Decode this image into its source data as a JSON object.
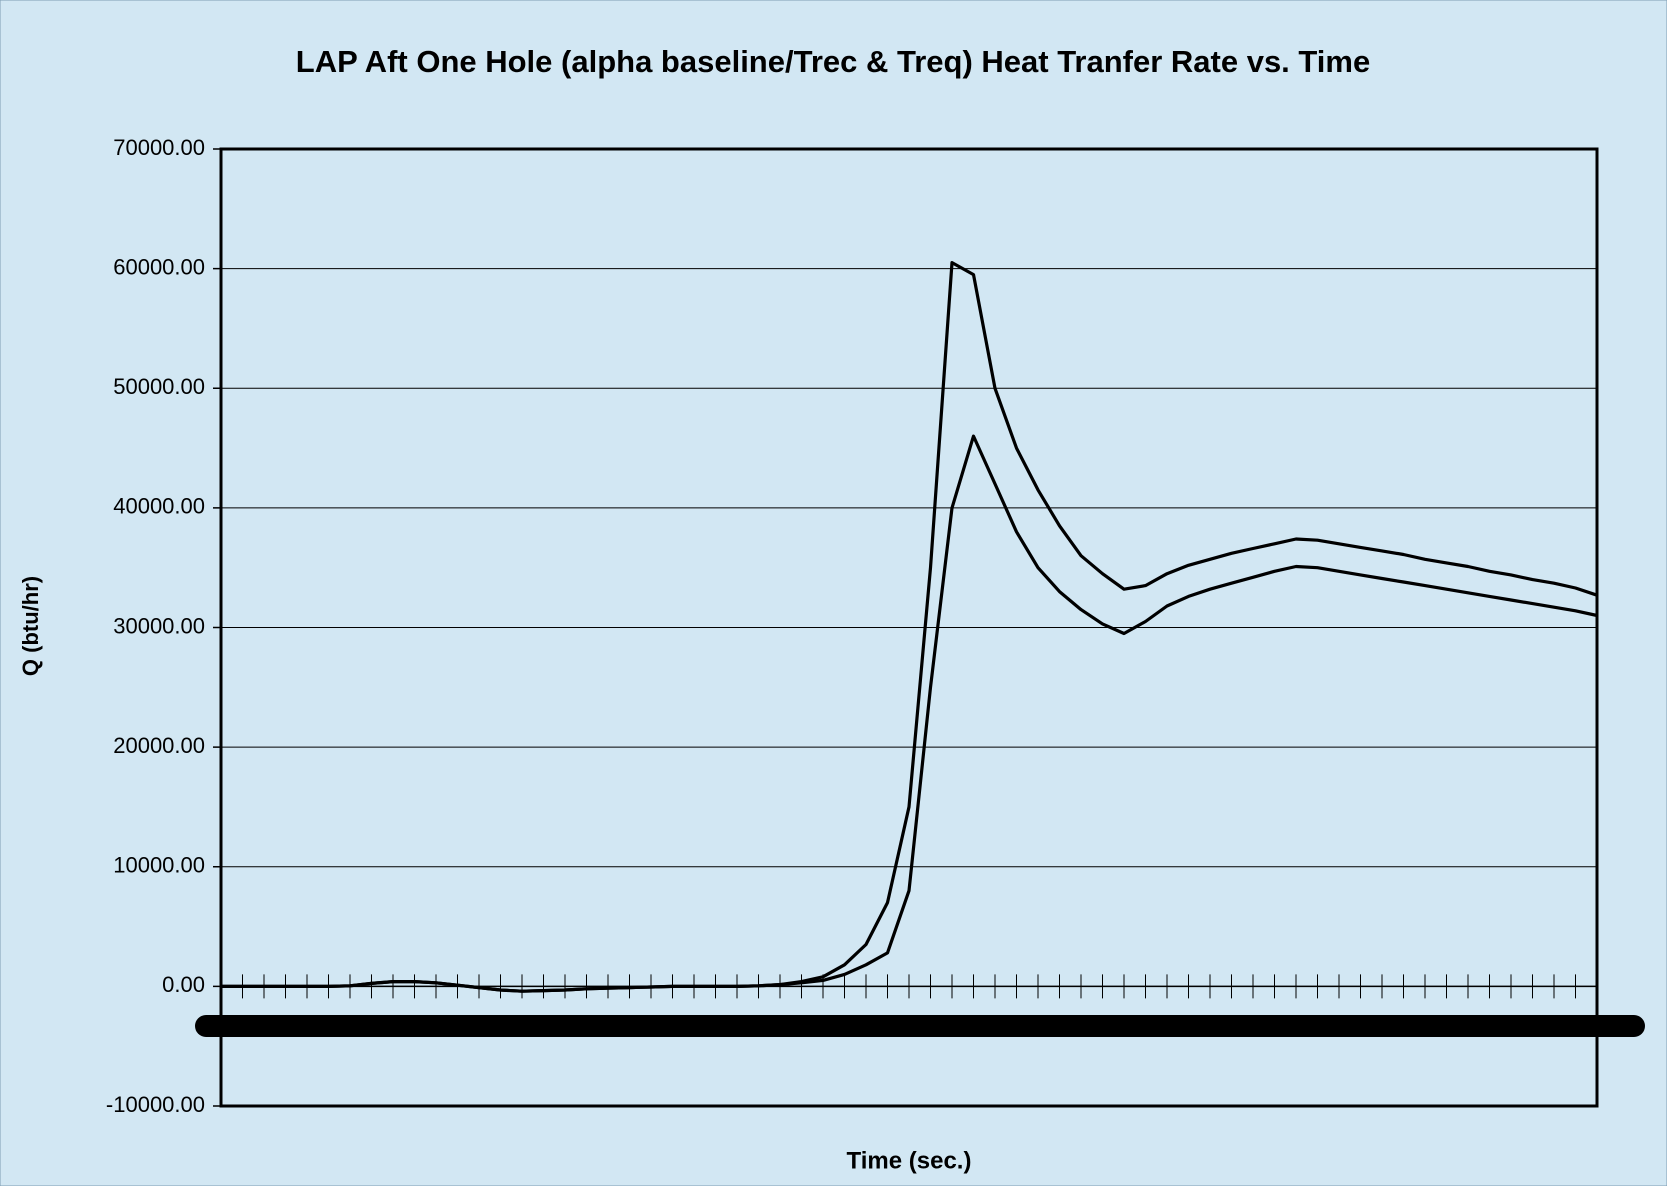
{
  "chart_data": {
    "type": "line",
    "title": "LAP Aft One Hole (alpha baseline/Trec & Treq) Heat Tranfer Rate vs. Time",
    "x_label": "Time (sec.)",
    "y_label": "Q (btu/hr)",
    "categories": [
      null,
      null,
      null,
      null,
      null,
      null,
      null,
      null,
      null,
      null,
      null,
      null,
      null,
      null,
      null,
      null,
      null,
      null,
      null,
      null,
      null,
      null,
      null,
      null,
      null,
      null,
      null,
      null,
      null,
      null,
      null,
      null,
      null,
      null,
      null,
      null,
      null,
      null,
      null,
      null,
      null,
      null,
      null,
      null,
      null,
      null,
      null,
      null,
      null,
      null,
      null,
      null,
      null,
      null,
      null,
      null,
      null,
      null,
      null,
      null,
      null,
      null,
      null,
      null,
      null
    ],
    "series": [
      {
        "color": "#000000",
        "values": [
          0,
          0,
          0,
          0,
          0,
          0,
          50,
          250,
          400,
          400,
          300,
          100,
          -100,
          -300,
          -400,
          -350,
          -300,
          -200,
          -150,
          -100,
          -50,
          0,
          0,
          0,
          0,
          50,
          150,
          400,
          800,
          1800,
          3500,
          7000,
          15000,
          35000,
          60500,
          59500,
          50000,
          45000,
          41500,
          38500,
          36000,
          34500,
          33200,
          33500,
          34500,
          35200,
          35700,
          36200,
          36600,
          37000,
          37400,
          37300,
          37000,
          36700,
          36400,
          36100,
          35700,
          35400,
          35100,
          34700,
          34400,
          34000,
          33700,
          33300,
          32700
        ]
      },
      {
        "color": "#000000",
        "values": [
          0,
          0,
          0,
          0,
          0,
          0,
          50,
          250,
          400,
          400,
          300,
          100,
          -100,
          -300,
          -400,
          -350,
          -300,
          -200,
          -150,
          -100,
          -50,
          0,
          0,
          0,
          0,
          50,
          150,
          300,
          500,
          1000,
          1800,
          2800,
          8000,
          25000,
          40000,
          46000,
          42000,
          38000,
          35000,
          33000,
          31500,
          30300,
          29500,
          30500,
          31800,
          32600,
          33200,
          33700,
          34200,
          34700,
          35100,
          35000,
          34700,
          34400,
          34100,
          33800,
          33500,
          33200,
          32900,
          32600,
          32300,
          32000,
          31700,
          31400,
          31000
        ]
      }
    ],
    "ylim": [
      -10000,
      70000
    ],
    "yticks": [
      {
        "value": -10000,
        "label": "-10000.00"
      },
      {
        "value": 0,
        "label": "0.00"
      },
      {
        "value": 10000,
        "label": "10000.00"
      },
      {
        "value": 20000,
        "label": "20000.00"
      },
      {
        "value": 30000,
        "label": "30000.00"
      },
      {
        "value": 40000,
        "label": "40000.00"
      },
      {
        "value": 50000,
        "label": "50000.00"
      },
      {
        "value": 60000,
        "label": "60000.00"
      },
      {
        "value": 70000,
        "label": "70000.00"
      }
    ],
    "grid": true
  }
}
